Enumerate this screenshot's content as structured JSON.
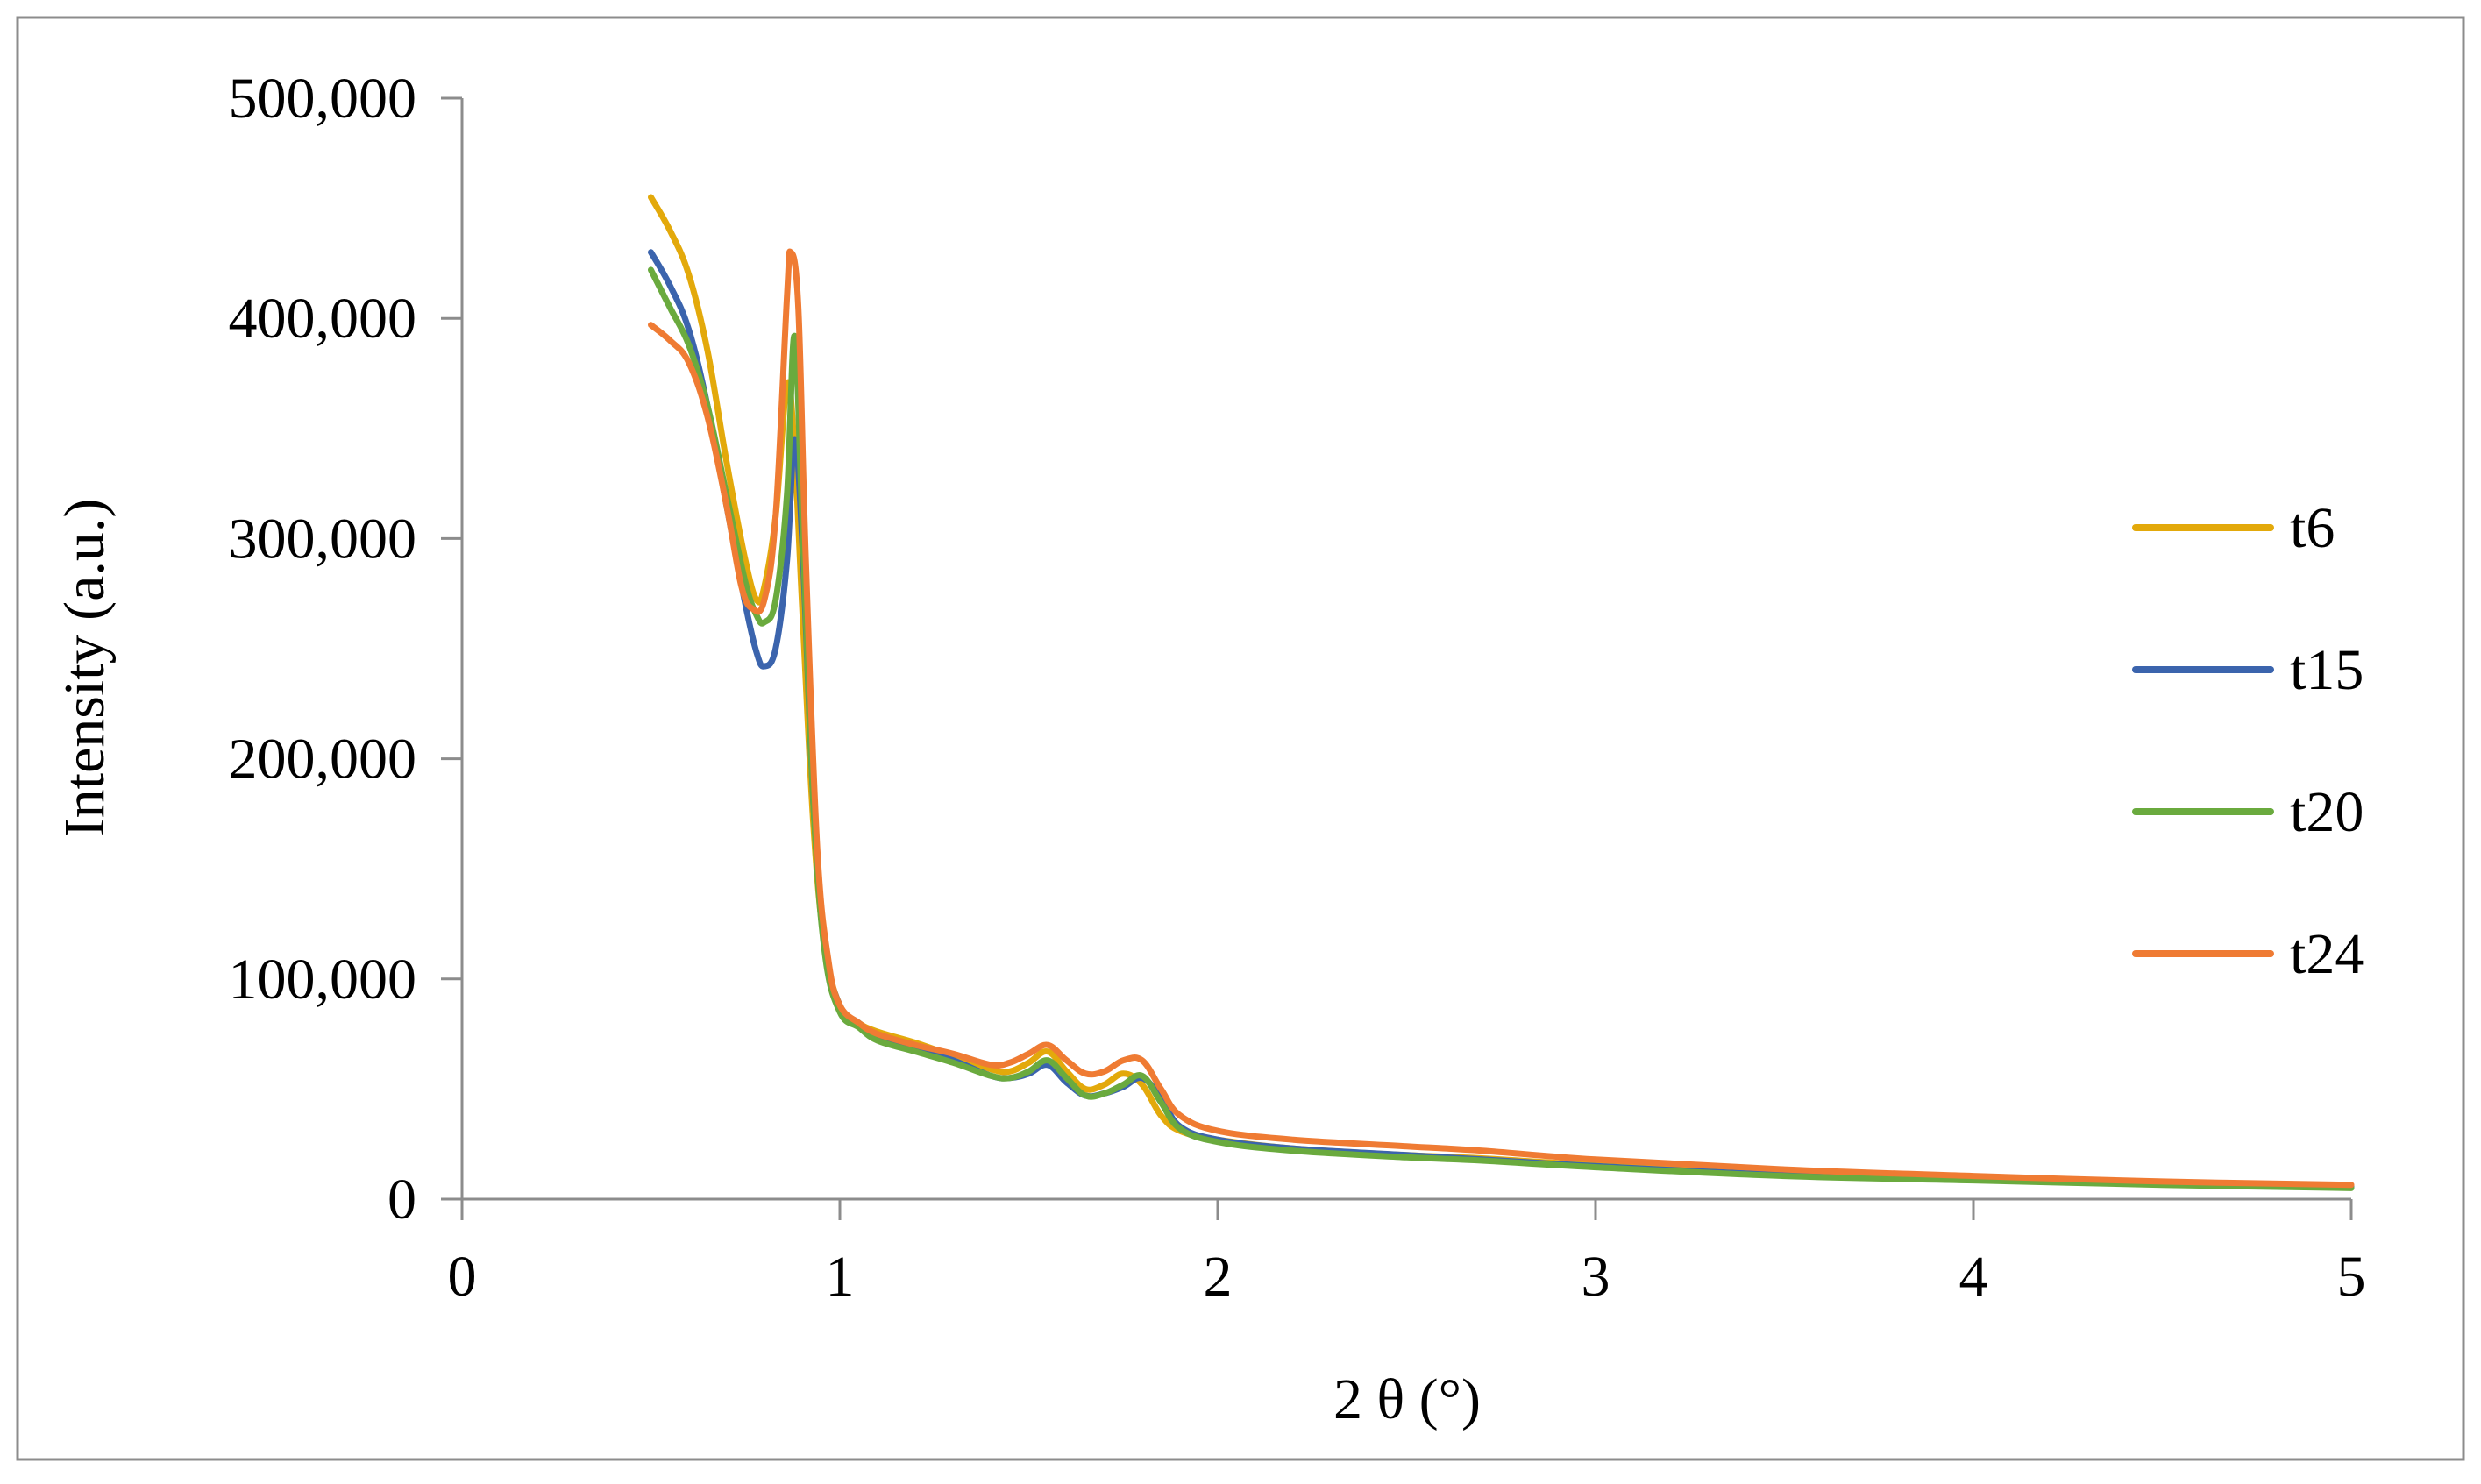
{
  "chart_data": {
    "type": "line",
    "title": "",
    "xlabel": "2 θ (°)",
    "ylabel": "Intensity (a.u.)",
    "xlim": [
      0,
      5
    ],
    "ylim": [
      0,
      500000
    ],
    "x_ticks": [
      0,
      1,
      2,
      3,
      4,
      5
    ],
    "x_tick_labels": [
      "0",
      "1",
      "2",
      "3",
      "4",
      "5"
    ],
    "y_ticks": [
      0,
      100000,
      200000,
      300000,
      400000,
      500000
    ],
    "y_tick_labels": [
      "0",
      "100,000",
      "200,000",
      "300,000",
      "400,000",
      "500,000"
    ],
    "grid": false,
    "legend_position": "right",
    "series": [
      {
        "name": "t6",
        "color": "#E3A90B",
        "points": [
          [
            0.5,
            455000
          ],
          [
            0.55,
            440000
          ],
          [
            0.6,
            420000
          ],
          [
            0.65,
            385000
          ],
          [
            0.7,
            335000
          ],
          [
            0.75,
            290000
          ],
          [
            0.78,
            272000
          ],
          [
            0.8,
            278000
          ],
          [
            0.83,
            310000
          ],
          [
            0.86,
            370000
          ],
          [
            0.88,
            340000
          ],
          [
            0.9,
            270000
          ],
          [
            0.93,
            170000
          ],
          [
            0.96,
            115000
          ],
          [
            1.0,
            88000
          ],
          [
            1.05,
            80000
          ],
          [
            1.1,
            76000
          ],
          [
            1.2,
            71000
          ],
          [
            1.3,
            65000
          ],
          [
            1.4,
            59000
          ],
          [
            1.45,
            58000
          ],
          [
            1.5,
            62000
          ],
          [
            1.55,
            67000
          ],
          [
            1.6,
            58000
          ],
          [
            1.65,
            50000
          ],
          [
            1.7,
            52000
          ],
          [
            1.75,
            57000
          ],
          [
            1.8,
            52000
          ],
          [
            1.85,
            38000
          ],
          [
            1.9,
            31000
          ],
          [
            2.0,
            27000
          ],
          [
            2.2,
            23000
          ],
          [
            2.5,
            20000
          ],
          [
            2.7,
            18500
          ],
          [
            3.0,
            15500
          ],
          [
            3.5,
            11500
          ],
          [
            4.0,
            9500
          ],
          [
            4.5,
            7500
          ],
          [
            5.0,
            6000
          ]
        ]
      },
      {
        "name": "t15",
        "color": "#3B64AD",
        "points": [
          [
            0.5,
            430000
          ],
          [
            0.55,
            415000
          ],
          [
            0.6,
            395000
          ],
          [
            0.65,
            360000
          ],
          [
            0.7,
            315000
          ],
          [
            0.75,
            270000
          ],
          [
            0.78,
            248000
          ],
          [
            0.8,
            242000
          ],
          [
            0.83,
            250000
          ],
          [
            0.86,
            290000
          ],
          [
            0.88,
            345000
          ],
          [
            0.9,
            300000
          ],
          [
            0.93,
            180000
          ],
          [
            0.96,
            115000
          ],
          [
            1.0,
            88000
          ],
          [
            1.05,
            80000
          ],
          [
            1.1,
            74000
          ],
          [
            1.2,
            68000
          ],
          [
            1.3,
            63000
          ],
          [
            1.4,
            56000
          ],
          [
            1.45,
            55000
          ],
          [
            1.5,
            57000
          ],
          [
            1.55,
            61000
          ],
          [
            1.6,
            53000
          ],
          [
            1.65,
            47000
          ],
          [
            1.7,
            48000
          ],
          [
            1.75,
            51000
          ],
          [
            1.8,
            55000
          ],
          [
            1.85,
            46000
          ],
          [
            1.9,
            33000
          ],
          [
            2.0,
            27000
          ],
          [
            2.2,
            23000
          ],
          [
            2.5,
            20000
          ],
          [
            2.7,
            18000
          ],
          [
            3.0,
            15000
          ],
          [
            3.5,
            11000
          ],
          [
            4.0,
            9000
          ],
          [
            4.5,
            7000
          ],
          [
            5.0,
            5500
          ]
        ]
      },
      {
        "name": "t20",
        "color": "#6AAA3E",
        "points": [
          [
            0.5,
            422000
          ],
          [
            0.55,
            405000
          ],
          [
            0.6,
            388000
          ],
          [
            0.65,
            360000
          ],
          [
            0.7,
            320000
          ],
          [
            0.75,
            280000
          ],
          [
            0.78,
            265000
          ],
          [
            0.8,
            262000
          ],
          [
            0.83,
            272000
          ],
          [
            0.86,
            320000
          ],
          [
            0.88,
            392000
          ],
          [
            0.9,
            310000
          ],
          [
            0.93,
            180000
          ],
          [
            0.96,
            112000
          ],
          [
            1.0,
            85000
          ],
          [
            1.05,
            78000
          ],
          [
            1.1,
            72000
          ],
          [
            1.2,
            67000
          ],
          [
            1.3,
            62000
          ],
          [
            1.4,
            56000
          ],
          [
            1.45,
            55000
          ],
          [
            1.5,
            58000
          ],
          [
            1.55,
            63000
          ],
          [
            1.6,
            55000
          ],
          [
            1.65,
            47000
          ],
          [
            1.7,
            48000
          ],
          [
            1.75,
            52000
          ],
          [
            1.8,
            56000
          ],
          [
            1.85,
            44000
          ],
          [
            1.9,
            32000
          ],
          [
            2.0,
            26000
          ],
          [
            2.2,
            22000
          ],
          [
            2.5,
            19000
          ],
          [
            2.7,
            17500
          ],
          [
            3.0,
            14500
          ],
          [
            3.5,
            10500
          ],
          [
            4.0,
            8500
          ],
          [
            4.5,
            6500
          ],
          [
            5.0,
            5000
          ]
        ]
      },
      {
        "name": "t24",
        "color": "#EF7B33",
        "points": [
          [
            0.5,
            397000
          ],
          [
            0.55,
            390000
          ],
          [
            0.6,
            380000
          ],
          [
            0.65,
            355000
          ],
          [
            0.7,
            315000
          ],
          [
            0.74,
            278000
          ],
          [
            0.77,
            268000
          ],
          [
            0.8,
            272000
          ],
          [
            0.83,
            310000
          ],
          [
            0.86,
            410000
          ],
          [
            0.87,
            430000
          ],
          [
            0.89,
            405000
          ],
          [
            0.91,
            290000
          ],
          [
            0.94,
            160000
          ],
          [
            0.97,
            108000
          ],
          [
            1.0,
            88000
          ],
          [
            1.05,
            80000
          ],
          [
            1.1,
            75000
          ],
          [
            1.2,
            70000
          ],
          [
            1.3,
            66000
          ],
          [
            1.4,
            61000
          ],
          [
            1.45,
            62000
          ],
          [
            1.5,
            66000
          ],
          [
            1.55,
            70000
          ],
          [
            1.6,
            63000
          ],
          [
            1.65,
            57000
          ],
          [
            1.7,
            58000
          ],
          [
            1.75,
            63000
          ],
          [
            1.8,
            63000
          ],
          [
            1.85,
            50000
          ],
          [
            1.9,
            38000
          ],
          [
            2.0,
            31000
          ],
          [
            2.2,
            27000
          ],
          [
            2.5,
            24000
          ],
          [
            2.7,
            22000
          ],
          [
            3.0,
            18000
          ],
          [
            3.5,
            13500
          ],
          [
            4.0,
            10500
          ],
          [
            4.5,
            8000
          ],
          [
            5.0,
            6500
          ]
        ]
      }
    ]
  }
}
